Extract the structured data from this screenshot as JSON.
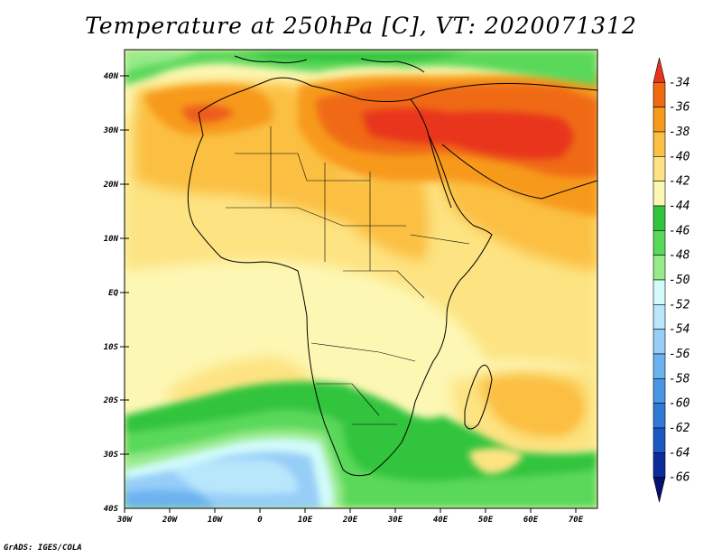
{
  "title": "Temperature at 250hPa [C], VT: 2020071312",
  "credit": "GrADS: IGES/COLA",
  "axes": {
    "lat_labels": [
      "40N",
      "30N",
      "20N",
      "10N",
      "EQ",
      "10S",
      "20S",
      "30S",
      "40S"
    ],
    "lon_labels": [
      "30W",
      "20W",
      "10W",
      "0",
      "10E",
      "20E",
      "30E",
      "40E",
      "50E",
      "60E",
      "70E"
    ]
  },
  "colorbar": {
    "labels": [
      "-34",
      "-36",
      "-38",
      "-40",
      "-42",
      "-44",
      "-46",
      "-48",
      "-50",
      "-52",
      "-54",
      "-56",
      "-58",
      "-60",
      "-62",
      "-64",
      "-66"
    ],
    "colors": [
      "#e8341c",
      "#f06a12",
      "#f79a1c",
      "#fbbf42",
      "#fde382",
      "#fdf7b4",
      "#32c43c",
      "#5ad85a",
      "#96ea8a",
      "#d2fbfa",
      "#b8e6fb",
      "#96cef8",
      "#6cb2f0",
      "#4a96e6",
      "#2e7ad6",
      "#1c58c2",
      "#0c2c9c",
      "#07106e"
    ]
  },
  "map": {
    "region": "Africa and surrounding oceans",
    "lat_range": [
      -40,
      45
    ],
    "lon_range": [
      -30,
      75
    ],
    "field": "Temperature at 250hPa",
    "units": "C"
  }
}
